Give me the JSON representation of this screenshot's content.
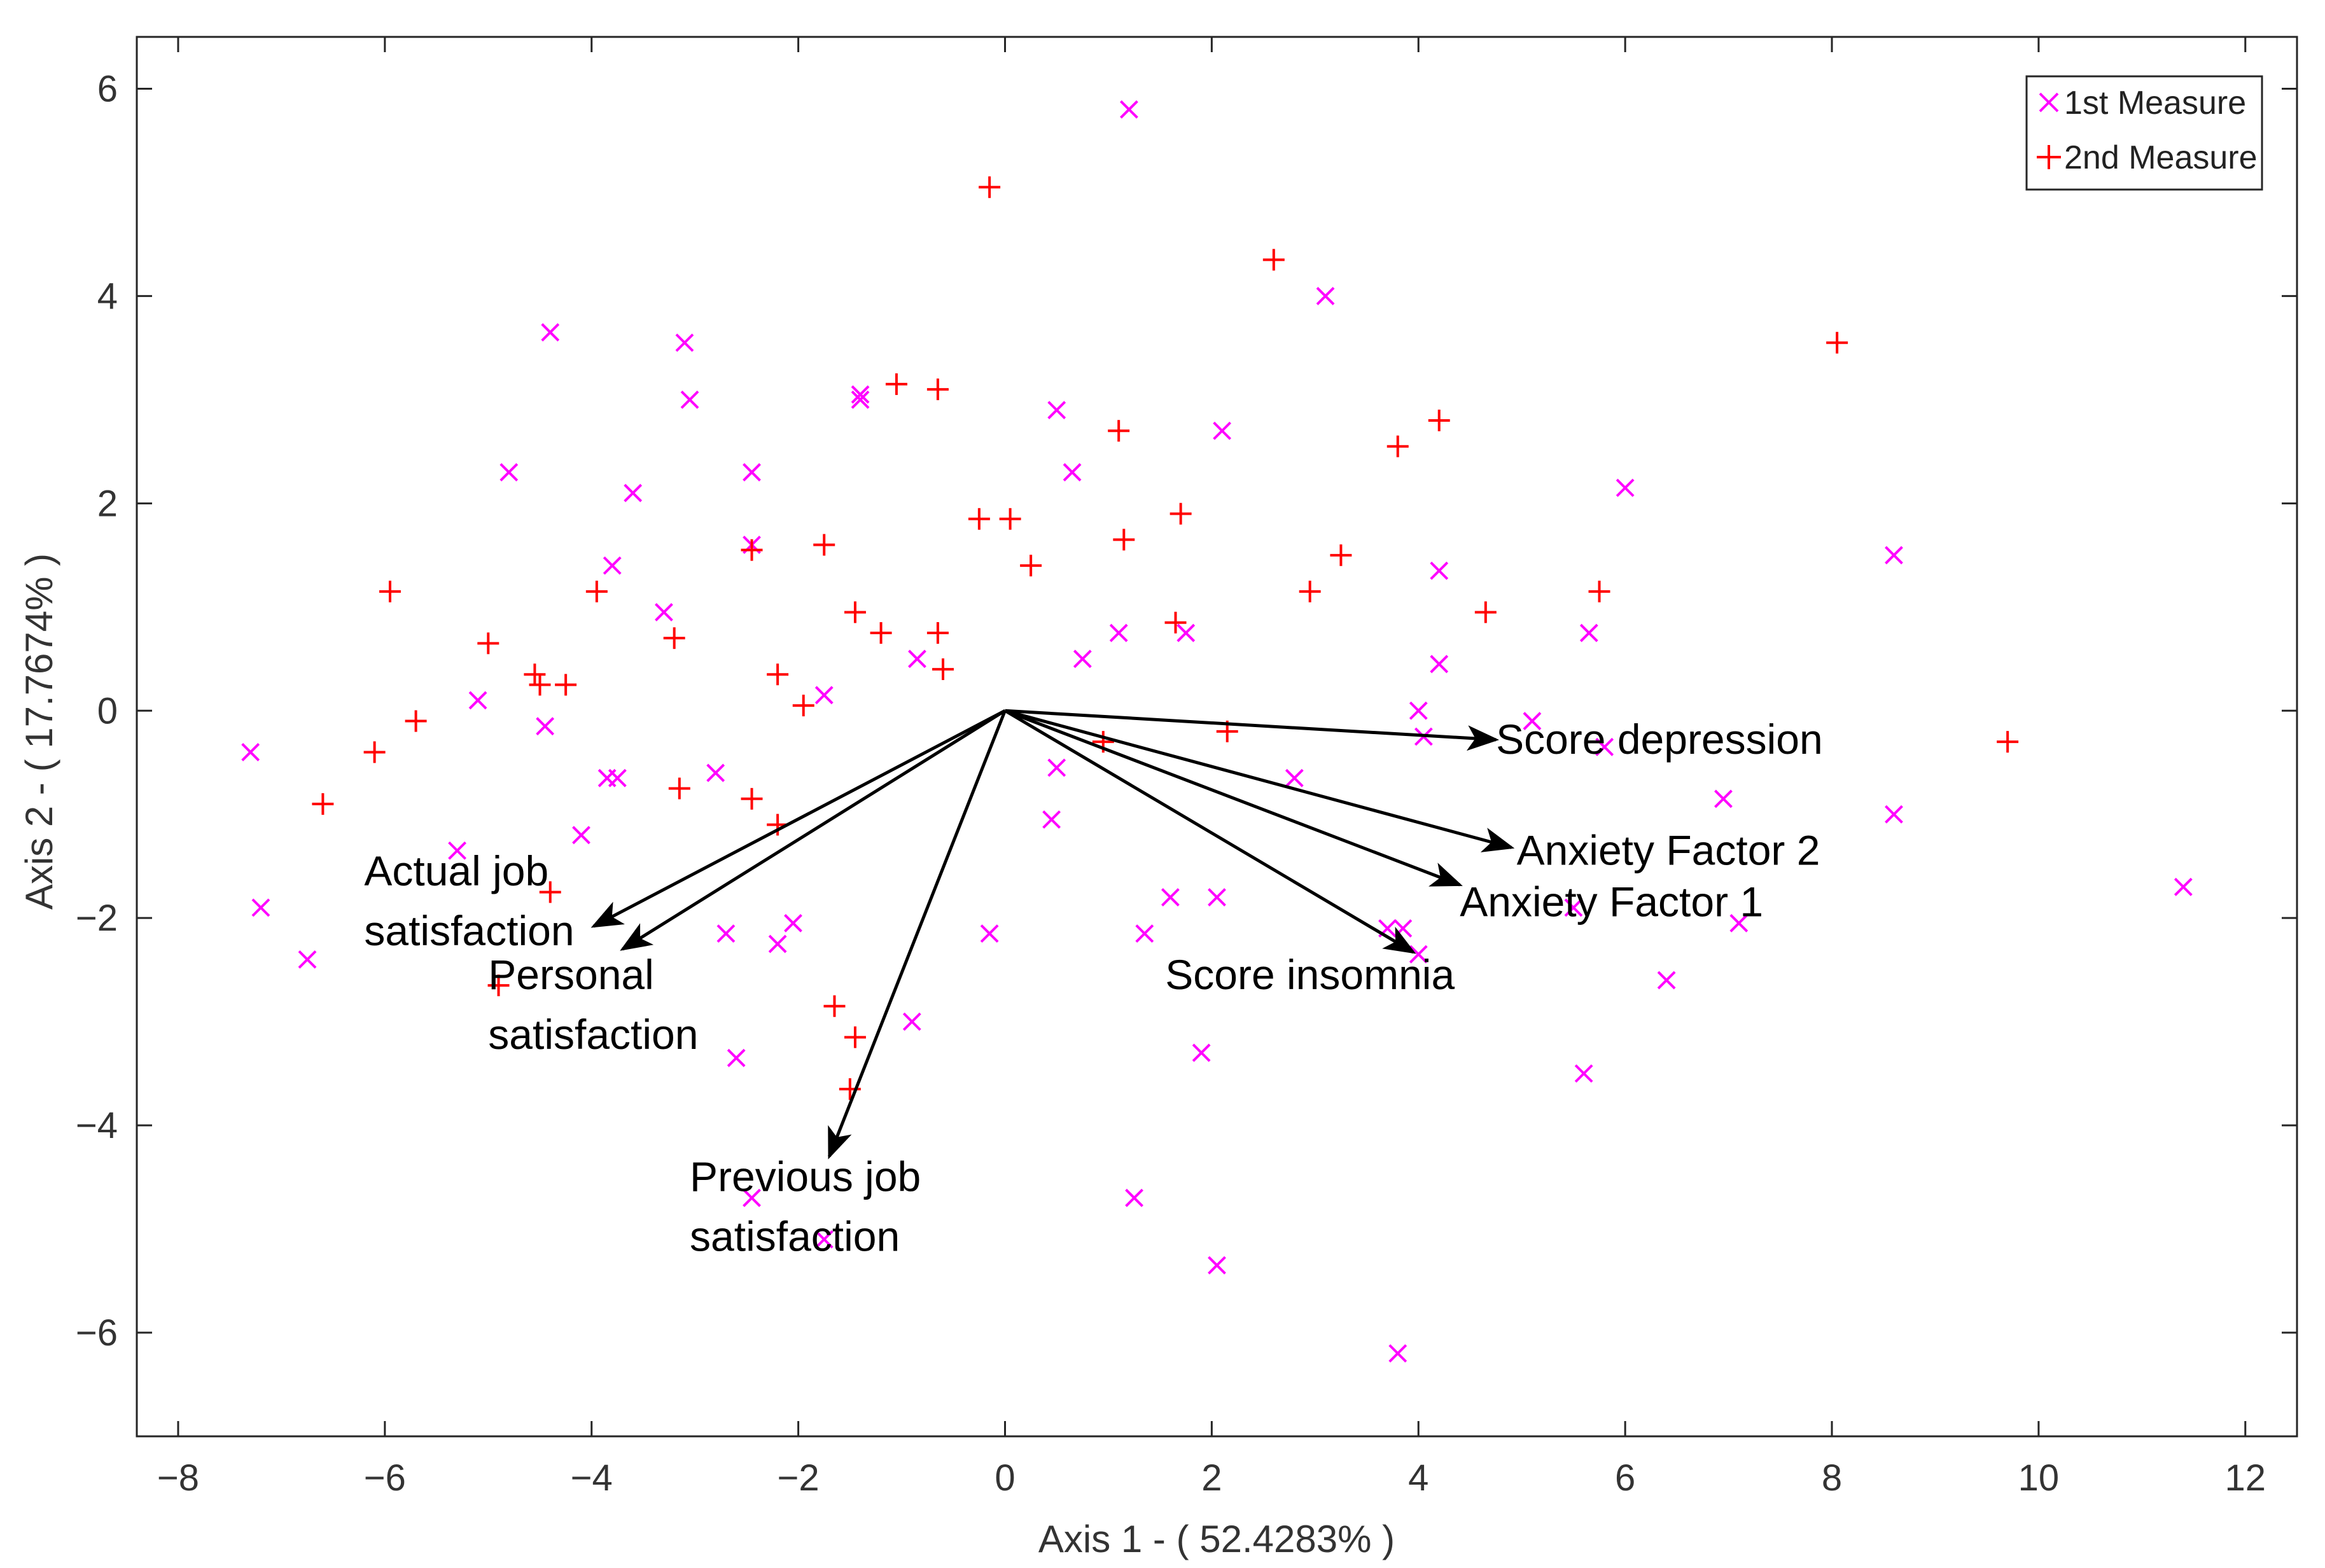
{
  "chart_data": {
    "type": "scatter",
    "subtype": "biplot",
    "xlabel": "Axis 1 - ( 52.4283%   )",
    "ylabel": "Axis 2 - ( 17.7674%   )",
    "xlim": [
      -8.4,
      12.5
    ],
    "ylim": [
      -7.0,
      6.5
    ],
    "xticks": [
      -8,
      -6,
      -4,
      -2,
      0,
      2,
      4,
      6,
      8,
      10,
      12
    ],
    "yticks": [
      -6,
      -4,
      -2,
      0,
      2,
      4,
      6
    ],
    "xtick_labels": [
      "−8",
      "−6",
      "−4",
      "−2",
      "0",
      "2",
      "4",
      "6",
      "8",
      "10",
      "12"
    ],
    "ytick_labels": [
      "−6",
      "−4",
      "−2",
      "0",
      "2",
      "4",
      "6"
    ],
    "grid": false,
    "legend_position": "top-right",
    "series": [
      {
        "name": "1st Measure",
        "marker": "x",
        "color": "#ff00ff",
        "points": [
          [
            1.2,
            5.8
          ],
          [
            3.1,
            4.0
          ],
          [
            -4.4,
            3.65
          ],
          [
            -3.1,
            3.55
          ],
          [
            -3.05,
            3.0
          ],
          [
            -1.4,
            3.05
          ],
          [
            -1.4,
            3.0
          ],
          [
            0.5,
            2.9
          ],
          [
            2.1,
            2.7
          ],
          [
            -4.8,
            2.3
          ],
          [
            -2.45,
            2.3
          ],
          [
            0.65,
            2.3
          ],
          [
            6.0,
            2.15
          ],
          [
            -3.6,
            2.1
          ],
          [
            -2.45,
            1.6
          ],
          [
            -3.8,
            1.4
          ],
          [
            4.2,
            1.35
          ],
          [
            8.6,
            1.5
          ],
          [
            -3.3,
            0.95
          ],
          [
            1.1,
            0.75
          ],
          [
            1.75,
            0.75
          ],
          [
            5.65,
            0.75
          ],
          [
            -0.85,
            0.5
          ],
          [
            0.75,
            0.5
          ],
          [
            4.2,
            0.45
          ],
          [
            -5.1,
            0.1
          ],
          [
            -1.75,
            0.15
          ],
          [
            4.0,
            0.0
          ],
          [
            -7.3,
            -0.4
          ],
          [
            -4.45,
            -0.15
          ],
          [
            4.05,
            -0.25
          ],
          [
            5.1,
            -0.1
          ],
          [
            5.8,
            -0.35
          ],
          [
            -2.8,
            -0.6
          ],
          [
            -3.85,
            -0.65
          ],
          [
            -3.75,
            -0.65
          ],
          [
            0.5,
            -0.55
          ],
          [
            2.8,
            -0.65
          ],
          [
            6.95,
            -0.85
          ],
          [
            0.45,
            -1.05
          ],
          [
            8.6,
            -1.0
          ],
          [
            -4.1,
            -1.2
          ],
          [
            -5.3,
            -1.35
          ],
          [
            -7.2,
            -1.9
          ],
          [
            11.4,
            -1.7
          ],
          [
            1.6,
            -1.8
          ],
          [
            2.05,
            -1.8
          ],
          [
            5.5,
            -1.9
          ],
          [
            -2.05,
            -2.05
          ],
          [
            3.7,
            -2.1
          ],
          [
            3.85,
            -2.1
          ],
          [
            7.1,
            -2.05
          ],
          [
            -2.7,
            -2.15
          ],
          [
            -2.2,
            -2.25
          ],
          [
            -0.15,
            -2.15
          ],
          [
            1.35,
            -2.15
          ],
          [
            -6.75,
            -2.4
          ],
          [
            4.0,
            -2.35
          ],
          [
            6.4,
            -2.6
          ],
          [
            -0.9,
            -3.0
          ],
          [
            1.9,
            -3.3
          ],
          [
            -2.6,
            -3.35
          ],
          [
            5.6,
            -3.5
          ],
          [
            -2.45,
            -4.7
          ],
          [
            1.25,
            -4.7
          ],
          [
            -1.75,
            -5.1
          ],
          [
            2.05,
            -5.35
          ],
          [
            3.8,
            -6.2
          ]
        ]
      },
      {
        "name": "2nd Measure",
        "marker": "+",
        "color": "#ff0000",
        "points": [
          [
            -0.15,
            5.05
          ],
          [
            2.6,
            4.35
          ],
          [
            8.05,
            3.55
          ],
          [
            -1.05,
            3.15
          ],
          [
            -0.65,
            3.1
          ],
          [
            1.1,
            2.7
          ],
          [
            4.2,
            2.8
          ],
          [
            3.8,
            2.55
          ],
          [
            1.7,
            1.9
          ],
          [
            -0.25,
            1.85
          ],
          [
            0.05,
            1.85
          ],
          [
            -1.75,
            1.6
          ],
          [
            1.15,
            1.65
          ],
          [
            -2.45,
            1.55
          ],
          [
            0.25,
            1.4
          ],
          [
            3.25,
            1.5
          ],
          [
            -5.95,
            1.15
          ],
          [
            -3.95,
            1.15
          ],
          [
            2.95,
            1.15
          ],
          [
            5.75,
            1.15
          ],
          [
            -1.45,
            0.95
          ],
          [
            4.65,
            0.95
          ],
          [
            1.65,
            0.85
          ],
          [
            -5.0,
            0.65
          ],
          [
            -3.2,
            0.7
          ],
          [
            -1.2,
            0.75
          ],
          [
            -0.65,
            0.75
          ],
          [
            -0.6,
            0.4
          ],
          [
            -4.55,
            0.35
          ],
          [
            -4.5,
            0.25
          ],
          [
            -4.25,
            0.25
          ],
          [
            -2.2,
            0.35
          ],
          [
            -1.95,
            0.05
          ],
          [
            -5.7,
            -0.1
          ],
          [
            -6.1,
            -0.4
          ],
          [
            2.15,
            -0.2
          ],
          [
            0.95,
            -0.3
          ],
          [
            9.7,
            -0.3
          ],
          [
            -3.15,
            -0.75
          ],
          [
            -2.45,
            -0.85
          ],
          [
            -6.6,
            -0.9
          ],
          [
            -2.2,
            -1.1
          ],
          [
            -4.4,
            -1.75
          ],
          [
            -4.9,
            -2.65
          ],
          [
            -1.65,
            -2.85
          ],
          [
            -1.45,
            -3.15
          ],
          [
            -1.5,
            -3.65
          ]
        ]
      }
    ],
    "vectors": [
      {
        "name": "Score depression",
        "label_lines": [
          "Score depression"
        ],
        "x": 4.75,
        "y": -0.28,
        "label_x": 4.75,
        "label_y": -0.28,
        "anchor": "start"
      },
      {
        "name": "Anxiety Factor 2",
        "label_lines": [
          "Anxiety Factor 2"
        ],
        "x": 4.9,
        "y": -1.32,
        "label_x": 4.95,
        "label_y": -1.35,
        "anchor": "start"
      },
      {
        "name": "Anxiety Factor 1",
        "label_lines": [
          "Anxiety Factor 1"
        ],
        "x": 4.4,
        "y": -1.68,
        "label_x": 4.4,
        "label_y": -1.85,
        "anchor": "start"
      },
      {
        "name": "Score insomnia",
        "label_lines": [
          "Score insomnia"
        ],
        "x": 3.95,
        "y": -2.33,
        "label_x": 1.55,
        "label_y": -2.55,
        "anchor": "start"
      },
      {
        "name": "Actual job satisfaction",
        "label_lines": [
          "Actual job",
          "satisfaction"
        ],
        "x": -3.98,
        "y": -2.08,
        "label_x": -6.2,
        "label_y": -1.55,
        "anchor": "start"
      },
      {
        "name": "Personal satisfaction",
        "label_lines": [
          "Personal",
          "satisfaction"
        ],
        "x": -3.7,
        "y": -2.3,
        "label_x": -5.0,
        "label_y": -2.55,
        "anchor": "start"
      },
      {
        "name": "Previous job satisfaction",
        "label_lines": [
          "Previous job",
          "satisfaction"
        ],
        "x": -1.7,
        "y": -4.3,
        "label_x": -3.05,
        "label_y": -4.5,
        "anchor": "start"
      }
    ],
    "vector_origin": [
      0,
      0
    ]
  }
}
